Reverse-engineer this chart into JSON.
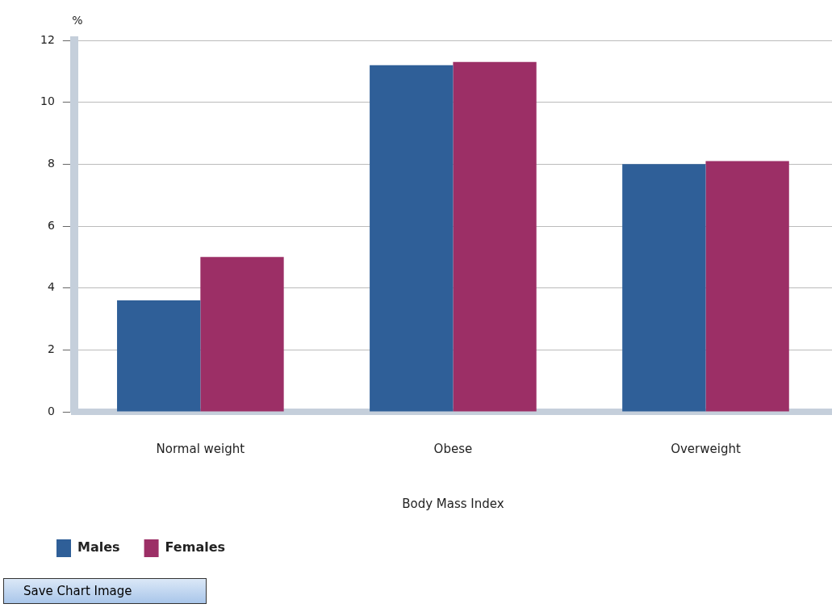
{
  "chart_data": {
    "type": "bar",
    "xlabel": "Body Mass Index",
    "ylabel": "%",
    "categories": [
      "Normal weight",
      "Obese",
      "Overweight"
    ],
    "series": [
      {
        "name": "Males",
        "color": "#2f5f98",
        "values": [
          3.6,
          11.2,
          8.0
        ]
      },
      {
        "name": "Females",
        "color": "#9c2f66",
        "values": [
          5.0,
          11.3,
          8.1
        ]
      }
    ],
    "ylim": [
      0,
      12
    ],
    "yticks": [
      0,
      2,
      4,
      6,
      8,
      10,
      12
    ],
    "grid": "y",
    "legend": "bottom left",
    "annotations": [
      "Save Chart Image"
    ]
  }
}
